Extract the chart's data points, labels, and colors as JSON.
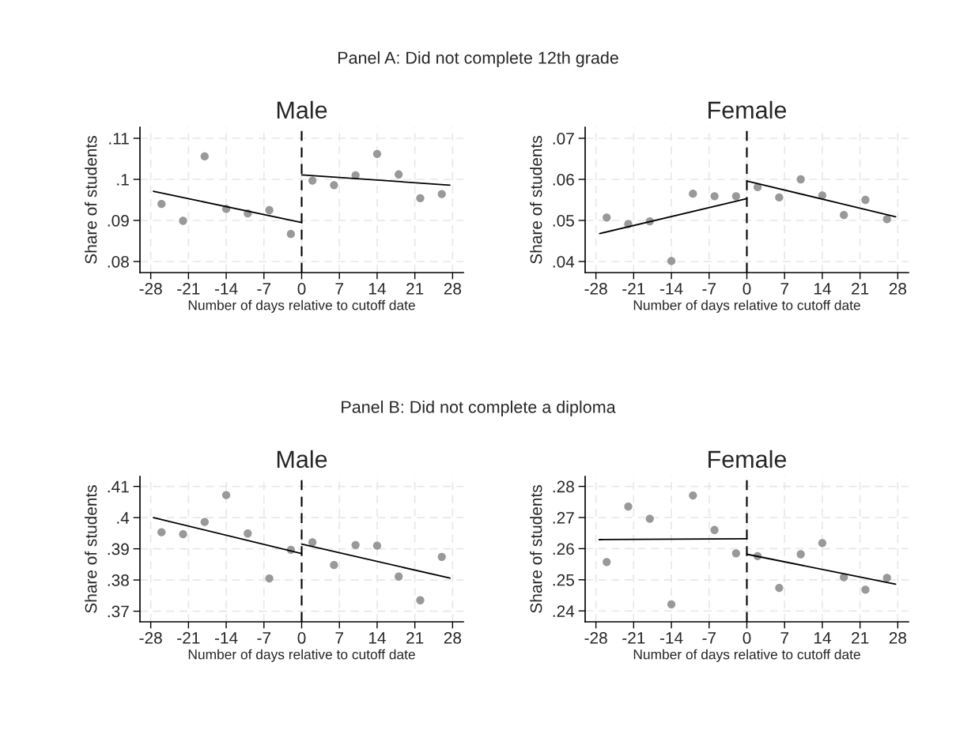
{
  "chart_data": [
    {
      "type": "scatter",
      "title": "Male",
      "annotations": [
        "Panel A: Did not complete 12th grade"
      ],
      "xlabel": "Number of days relative to cutoff date",
      "ylabel": "Share of students",
      "x": [
        -26,
        -22,
        -18,
        -14,
        -10,
        -6,
        -2,
        2,
        6,
        10,
        14,
        18,
        22,
        26
      ],
      "series": [
        {
          "color": "#999999",
          "values": [
            0.094,
            0.0899,
            0.1056,
            0.0928,
            0.0917,
            0.0925,
            0.0867,
            0.0997,
            0.0986,
            0.101,
            0.1062,
            0.1012,
            0.0954,
            0.0964
          ]
        },
        {
          "type": "line",
          "marker": "none",
          "color": "#000000",
          "x": [
            -27.5,
            0
          ],
          "values": [
            0.0971,
            0.0895
          ]
        },
        {
          "type": "line",
          "marker": "none",
          "color": "#000000",
          "x": [
            0,
            27.5
          ],
          "values": [
            0.1011,
            0.0986
          ]
        }
      ],
      "xlim": [
        -30,
        30
      ],
      "ylim": [
        0.0773,
        0.1127
      ],
      "xticks": [
        -28,
        -21,
        -14,
        -7,
        0,
        7,
        14,
        21,
        28
      ],
      "yticks": [
        {
          "value": 0.08,
          "label": ".08"
        },
        {
          "value": 0.09,
          "label": ".09"
        },
        {
          "value": 0.1,
          "label": ".1"
        },
        {
          "value": 0.11,
          "label": ".11"
        }
      ],
      "ref_lines": [
        {
          "axis": "x",
          "value": 0,
          "color": "#000000",
          "line_style": "dashed"
        }
      ],
      "grid": true,
      "marker": "circle",
      "legend": false
    },
    {
      "type": "scatter",
      "title": "Female",
      "xlabel": "Number of days relative to cutoff date",
      "ylabel": "Share of students",
      "x": [
        -26,
        -22,
        -18,
        -14,
        -10,
        -6,
        -2,
        2,
        6,
        10,
        14,
        18,
        22,
        26
      ],
      "series": [
        {
          "color": "#999999",
          "values": [
            0.0507,
            0.0491,
            0.0498,
            0.0401,
            0.0565,
            0.0559,
            0.0559,
            0.0581,
            0.0556,
            0.06,
            0.0561,
            0.0513,
            0.055,
            0.0503
          ]
        },
        {
          "type": "line",
          "marker": "none",
          "color": "#000000",
          "x": [
            -27.3,
            0
          ],
          "values": [
            0.0468,
            0.0553
          ]
        },
        {
          "type": "line",
          "marker": "none",
          "color": "#000000",
          "x": [
            0,
            27.6
          ],
          "values": [
            0.0596,
            0.0509
          ]
        }
      ],
      "xlim": [
        -30,
        30
      ],
      "ylim": [
        0.0373,
        0.0727
      ],
      "xticks": [
        -28,
        -21,
        -14,
        -7,
        0,
        7,
        14,
        21,
        28
      ],
      "yticks": [
        {
          "value": 0.04,
          "label": ".04"
        },
        {
          "value": 0.05,
          "label": ".05"
        },
        {
          "value": 0.06,
          "label": ".06"
        },
        {
          "value": 0.07,
          "label": ".07"
        }
      ],
      "ref_lines": [
        {
          "axis": "x",
          "value": 0,
          "color": "#000000",
          "line_style": "dashed"
        }
      ],
      "grid": true,
      "marker": "circle",
      "legend": false
    },
    {
      "type": "scatter",
      "title": "Male",
      "annotations": [
        "Panel B: Did not complete a diploma"
      ],
      "xlabel": "Number of days relative to cutoff date",
      "ylabel": "Share of students",
      "x": [
        -26,
        -22,
        -18,
        -14,
        -10,
        -6,
        -2,
        2,
        6,
        10,
        14,
        18,
        22,
        26
      ],
      "series": [
        {
          "color": "#999999",
          "values": [
            0.3953,
            0.3947,
            0.3986,
            0.4072,
            0.3949,
            0.3805,
            0.3897,
            0.3921,
            0.3848,
            0.3912,
            0.391,
            0.3811,
            0.3735,
            0.3874
          ]
        },
        {
          "type": "line",
          "marker": "none",
          "color": "#000000",
          "x": [
            -27.5,
            0
          ],
          "values": [
            0.4,
            0.3885
          ]
        },
        {
          "type": "line",
          "marker": "none",
          "color": "#000000",
          "x": [
            0,
            27.5
          ],
          "values": [
            0.3915,
            0.3806
          ]
        }
      ],
      "xlim": [
        -30,
        30
      ],
      "ylim": [
        0.3666,
        0.4132
      ],
      "xticks": [
        -28,
        -21,
        -14,
        -7,
        0,
        7,
        14,
        21,
        28
      ],
      "yticks": [
        {
          "value": 0.37,
          "label": ".37"
        },
        {
          "value": 0.38,
          "label": ".38"
        },
        {
          "value": 0.39,
          "label": ".39"
        },
        {
          "value": 0.4,
          "label": ".4"
        },
        {
          "value": 0.41,
          "label": ".41"
        }
      ],
      "ref_lines": [
        {
          "axis": "x",
          "value": 0,
          "color": "#000000",
          "line_style": "dashed"
        }
      ],
      "grid": true,
      "marker": "circle",
      "legend": false
    },
    {
      "type": "scatter",
      "title": "Female",
      "xlabel": "Number of days relative to cutoff date",
      "ylabel": "Share of students",
      "x": [
        -26,
        -22,
        -18,
        -14,
        -10,
        -6,
        -2,
        2,
        6,
        10,
        14,
        18,
        22,
        26
      ],
      "series": [
        {
          "color": "#999999",
          "values": [
            0.2557,
            0.2735,
            0.2696,
            0.2421,
            0.2771,
            0.266,
            0.2585,
            0.2576,
            0.2474,
            0.2582,
            0.2618,
            0.2508,
            0.2468,
            0.2506
          ]
        },
        {
          "type": "line",
          "marker": "none",
          "color": "#000000",
          "x": [
            -27.4,
            0
          ],
          "values": [
            0.2629,
            0.2632
          ]
        },
        {
          "type": "line",
          "marker": "none",
          "color": "#000000",
          "x": [
            0,
            27.6
          ],
          "values": [
            0.2582,
            0.2486
          ]
        }
      ],
      "xlim": [
        -30,
        30
      ],
      "ylim": [
        0.2365,
        0.2832
      ],
      "xticks": [
        -28,
        -21,
        -14,
        -7,
        0,
        7,
        14,
        21,
        28
      ],
      "yticks": [
        {
          "value": 0.24,
          "label": ".24"
        },
        {
          "value": 0.25,
          "label": ".25"
        },
        {
          "value": 0.26,
          "label": ".26"
        },
        {
          "value": 0.27,
          "label": ".27"
        },
        {
          "value": 0.28,
          "label": ".28"
        }
      ],
      "ref_lines": [
        {
          "axis": "x",
          "value": 0,
          "color": "#000000",
          "line_style": "dashed"
        }
      ],
      "grid": true,
      "marker": "circle",
      "legend": false
    }
  ]
}
